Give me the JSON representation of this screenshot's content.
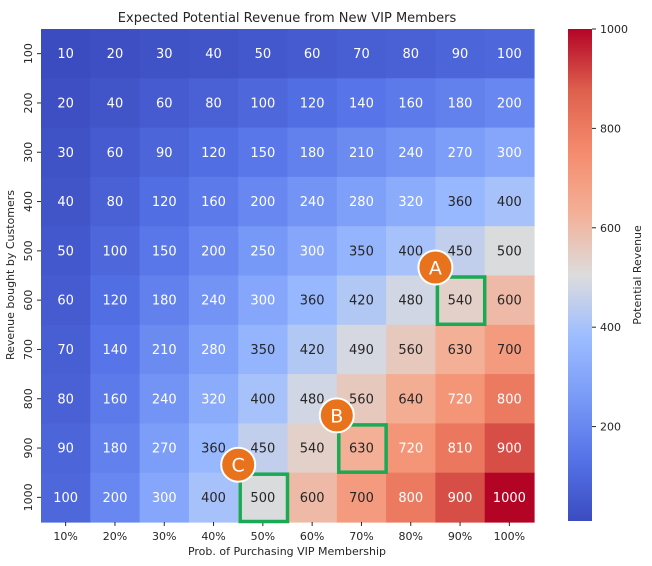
{
  "chart_data": {
    "type": "heatmap",
    "title": "Expected Potential Revenue from New VIP Members",
    "xlabel": "Prob. of Purchasing VIP Membership",
    "ylabel": "Revenue bought by Customers",
    "x_categories": [
      "10%",
      "20%",
      "30%",
      "40%",
      "50%",
      "60%",
      "70%",
      "80%",
      "90%",
      "100%"
    ],
    "y_categories": [
      "100",
      "200",
      "300",
      "400",
      "500",
      "600",
      "700",
      "800",
      "900",
      "1000"
    ],
    "values": [
      [
        10,
        20,
        30,
        40,
        50,
        60,
        70,
        80,
        90,
        100
      ],
      [
        20,
        40,
        60,
        80,
        100,
        120,
        140,
        160,
        180,
        200
      ],
      [
        30,
        60,
        90,
        120,
        150,
        180,
        210,
        240,
        270,
        300
      ],
      [
        40,
        80,
        120,
        160,
        200,
        240,
        280,
        320,
        360,
        400
      ],
      [
        50,
        100,
        150,
        200,
        250,
        300,
        350,
        400,
        450,
        500
      ],
      [
        60,
        120,
        180,
        240,
        300,
        360,
        420,
        480,
        540,
        600
      ],
      [
        70,
        140,
        210,
        280,
        350,
        420,
        490,
        560,
        630,
        700
      ],
      [
        80,
        160,
        240,
        320,
        400,
        480,
        560,
        640,
        720,
        800
      ],
      [
        90,
        180,
        270,
        360,
        450,
        540,
        630,
        720,
        810,
        900
      ],
      [
        100,
        200,
        300,
        400,
        500,
        600,
        700,
        800,
        900,
        1000
      ]
    ],
    "colormap": "coolwarm",
    "vmin": 10,
    "vmax": 1000,
    "colorbar": {
      "label": "Potential Revenue",
      "ticks": [
        "200",
        "400",
        "600",
        "800",
        "1000"
      ]
    },
    "highlights": [
      {
        "label": "A",
        "row": 5,
        "col": 8
      },
      {
        "label": "B",
        "row": 8,
        "col": 6
      },
      {
        "label": "C",
        "row": 9,
        "col": 4
      }
    ],
    "highlight_color": "#1aaa55",
    "marker_color": "#e8731c",
    "grid": false
  }
}
